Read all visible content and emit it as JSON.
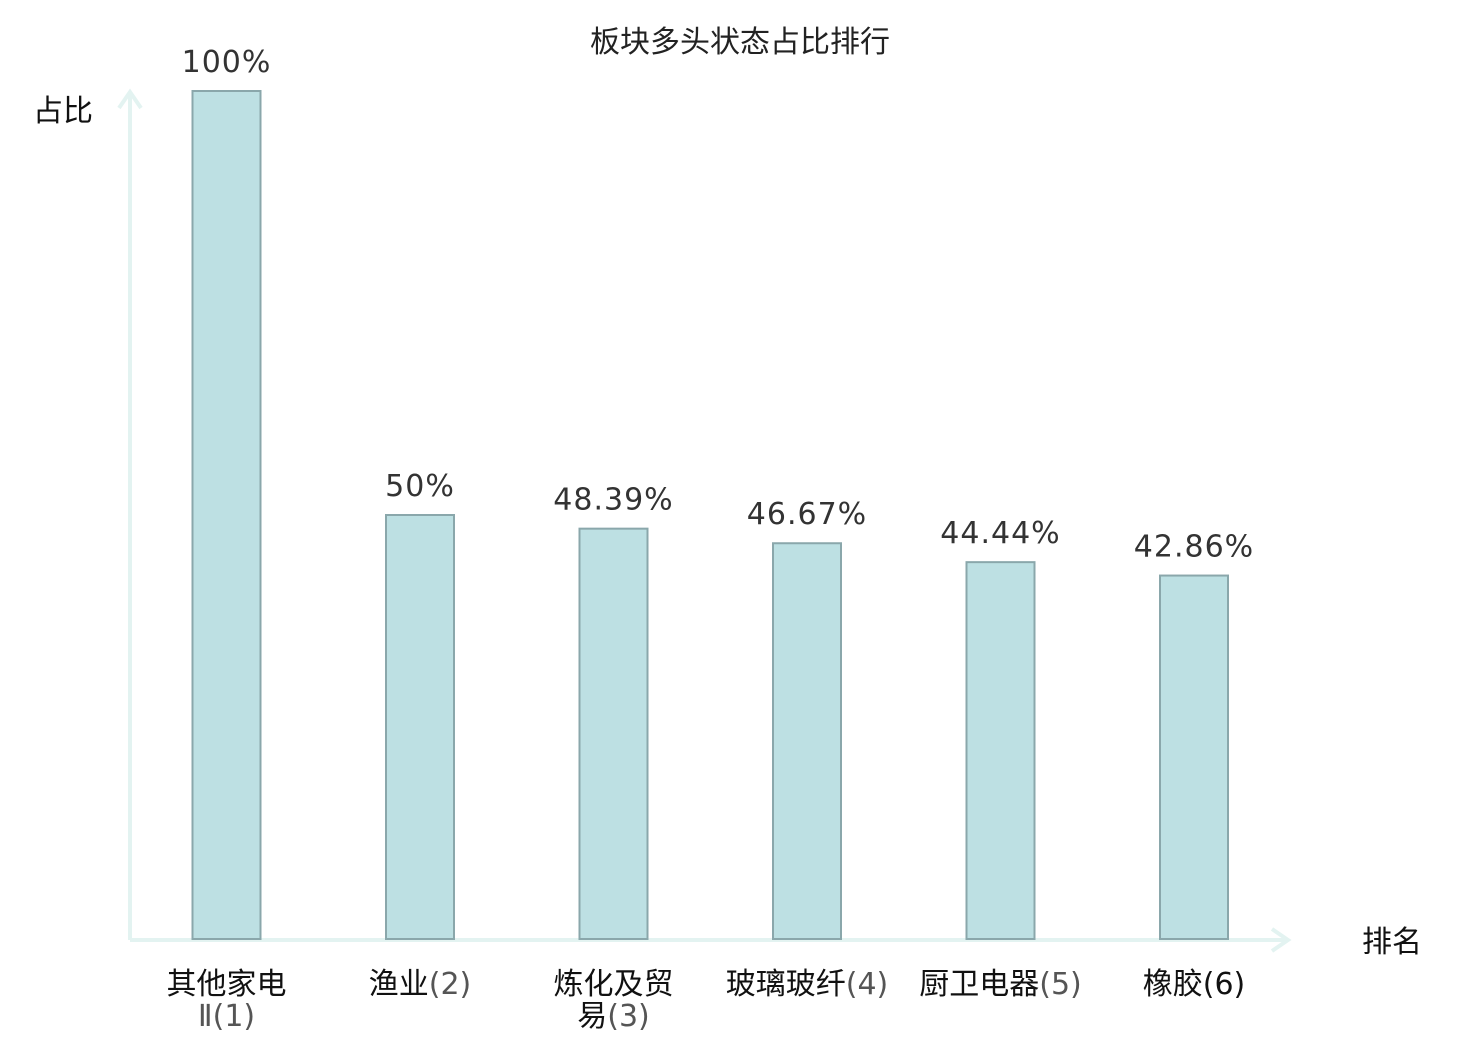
{
  "chart_data": {
    "type": "bar",
    "title": "板块多头状态占比排行",
    "ylabel": "占比",
    "xlabel": "排名",
    "ylim": [
      0,
      100
    ],
    "grid": false,
    "categories": [
      {
        "lines": [
          {
            "name": "其他家电",
            "rank": ""
          },
          {
            "name": "",
            "rank": "Ⅱ(1)"
          }
        ],
        "highlight": false
      },
      {
        "lines": [
          {
            "name": "渔业",
            "rank": "(2)"
          }
        ],
        "highlight": false
      },
      {
        "lines": [
          {
            "name": "炼化及贸",
            "rank": ""
          },
          {
            "name": "易",
            "rank": "(3)"
          }
        ],
        "highlight": false
      },
      {
        "lines": [
          {
            "name": "玻璃玻纤",
            "rank": "(4)"
          }
        ],
        "highlight": false
      },
      {
        "lines": [
          {
            "name": "厨卫电器",
            "rank": "(5)"
          }
        ],
        "highlight": false
      },
      {
        "lines": [
          {
            "name": "橡胶",
            "rank": "(6)"
          }
        ],
        "highlight": true
      }
    ],
    "values": [
      100,
      50,
      48.39,
      46.67,
      44.44,
      42.86
    ],
    "value_labels": [
      "100%",
      "50%",
      "48.39%",
      "46.67%",
      "44.44%",
      "42.86%"
    ]
  },
  "colors": {
    "bar_fill": "#bde0e3",
    "bar_stroke": "#8aa7ab",
    "axis": "#e3f3f1",
    "highlight": "#e00000"
  }
}
